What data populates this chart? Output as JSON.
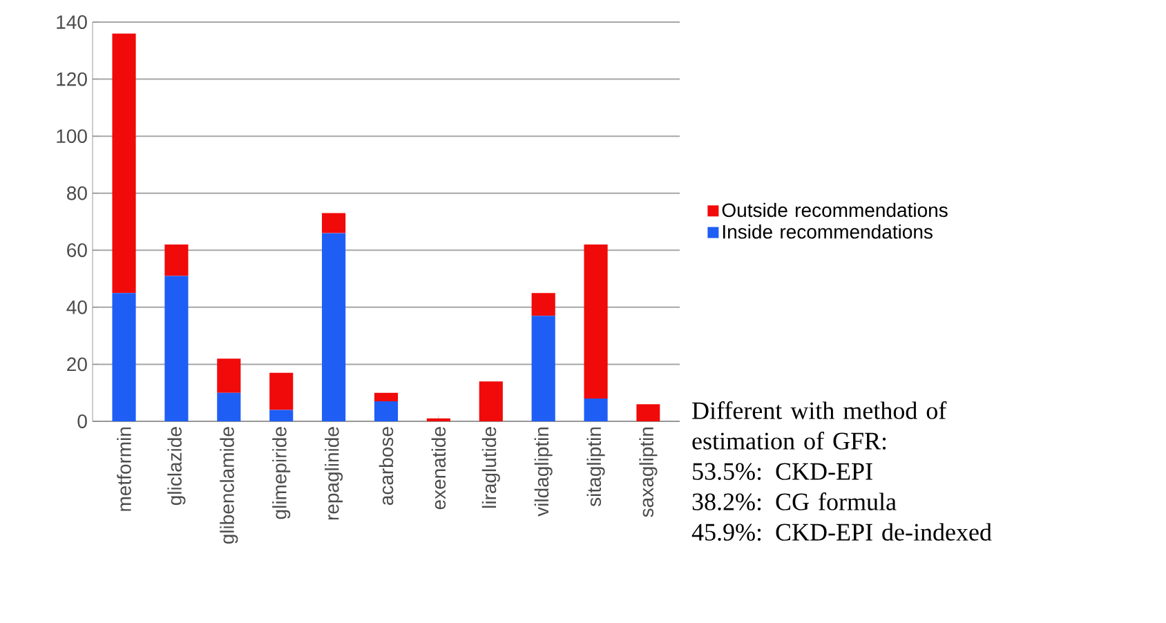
{
  "chart_data": {
    "type": "bar",
    "stacked": true,
    "categories": [
      "metformin",
      "gliclazide",
      "glibenclamide",
      "glimepiride",
      "repaglinide",
      "acarbose",
      "exenatide",
      "liraglutide",
      "vildagliptin",
      "sitagliptin",
      "saxagliptin"
    ],
    "series": [
      {
        "name": "Inside recommendations",
        "color": "#1f5ef5",
        "values": [
          45,
          51,
          10,
          4,
          66,
          7,
          0,
          0,
          37,
          8,
          0
        ]
      },
      {
        "name": "Outside recommendations",
        "color": "#f00a0a",
        "values": [
          91,
          11,
          12,
          13,
          7,
          3,
          1,
          14,
          8,
          54,
          6
        ]
      }
    ],
    "ylim": [
      0,
      140
    ],
    "yticks": [
      0,
      20,
      40,
      60,
      80,
      100,
      120,
      140
    ],
    "grid": "y",
    "legend": "right",
    "annotations": [
      "Different with method of estimation of GFR:",
      "53.5%: CKD-EPI",
      "38.2%: CG formula",
      "45.9%: CKD-EPI de-indexed"
    ]
  }
}
